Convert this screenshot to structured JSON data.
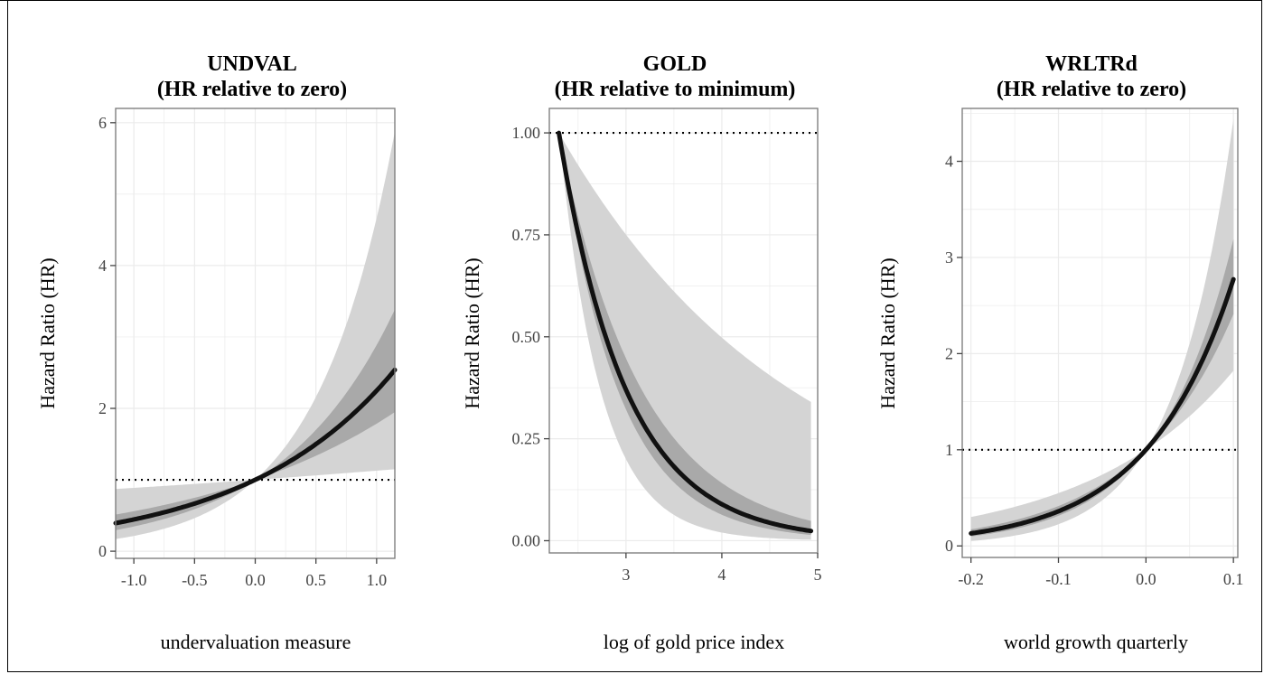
{
  "chart_data": [
    {
      "type": "line",
      "title_line1": "UNDVAL",
      "title_line2": "(HR relative to zero)",
      "xlabel": "undervaluation measure",
      "ylabel": "Hazard Ratio (HR)",
      "xlim": [
        -1.15,
        1.15
      ],
      "ylim": [
        -0.1,
        6.2
      ],
      "xticks": [
        -1.0,
        -0.5,
        0.0,
        0.5,
        1.0
      ],
      "xtick_labels": [
        "-1.0",
        "-0.5",
        "0.0",
        "0.5",
        "1.0"
      ],
      "yticks": [
        0,
        2,
        4,
        6
      ],
      "ytick_labels": [
        "0",
        "2",
        "4",
        "6"
      ],
      "reference_line": 1,
      "grid": true,
      "curve": {
        "model": "exp",
        "x_range": [
          -1.15,
          1.15
        ],
        "x0": 0.0,
        "rate": 0.81
      },
      "band_outer": {
        "model": "exp",
        "x_range": [
          -1.15,
          1.15
        ],
        "x0": 0.0,
        "rate_low": 0.12,
        "rate_high": 1.54
      },
      "band_inner": {
        "model": "exp",
        "x_range": [
          -1.15,
          1.15
        ],
        "x0": 0.0,
        "rate_low": 0.58,
        "rate_high": 1.06
      }
    },
    {
      "type": "line",
      "title_line1": "GOLD",
      "title_line2": "(HR relative to minimum)",
      "xlabel": "log of gold price index",
      "ylabel": "Hazard Ratio (HR)",
      "xlim": [
        2.2,
        5.0
      ],
      "ylim": [
        -0.03,
        1.06
      ],
      "xticks": [
        3,
        4,
        5
      ],
      "xtick_labels": [
        "3",
        "4",
        "5"
      ],
      "yticks": [
        0,
        0.25,
        0.5,
        0.75,
        1.0
      ],
      "ytick_labels": [
        "0.00",
        "0.25",
        "0.50",
        "0.75",
        "1.00"
      ],
      "reference_line": 1,
      "grid": true,
      "curve": {
        "model": "exp",
        "x_range": [
          2.3,
          4.93
        ],
        "x0": 2.3,
        "rate": -1.42
      },
      "band_outer": {
        "model": "exp",
        "x_range": [
          2.3,
          4.93
        ],
        "x0": 2.3,
        "rate_low": -2.3,
        "rate_high": -0.41
      },
      "band_inner": {
        "model": "exp",
        "x_range": [
          2.3,
          4.93
        ],
        "x0": 2.3,
        "rate_low": -1.62,
        "rate_high": -1.15
      }
    },
    {
      "type": "line",
      "title_line1": "WRLTRd",
      "title_line2": "(HR relative to zero)",
      "xlabel": "world growth quarterly",
      "ylabel": "Hazard Ratio (HR)",
      "xlim": [
        -0.21,
        0.105
      ],
      "ylim": [
        -0.12,
        4.55
      ],
      "xticks": [
        -0.2,
        -0.1,
        0.0,
        0.1
      ],
      "xtick_labels": [
        "-0.2",
        "-0.1",
        "0.0",
        "0.1"
      ],
      "yticks": [
        0,
        1,
        2,
        3,
        4
      ],
      "ytick_labels": [
        "0",
        "1",
        "2",
        "3",
        "4"
      ],
      "reference_line": 1,
      "grid": true,
      "curve": {
        "model": "exp",
        "x_range": [
          -0.2,
          0.1
        ],
        "x0": 0.0,
        "rate": 10.2
      },
      "band_outer": {
        "model": "exp",
        "x_range": [
          -0.2,
          0.1
        ],
        "x0": 0.0,
        "rate_low": 6.0,
        "rate_high": 14.9
      },
      "band_inner": {
        "model": "exp",
        "x_range": [
          -0.2,
          0.1
        ],
        "x0": 0.0,
        "rate_low": 8.8,
        "rate_high": 11.6
      }
    }
  ]
}
